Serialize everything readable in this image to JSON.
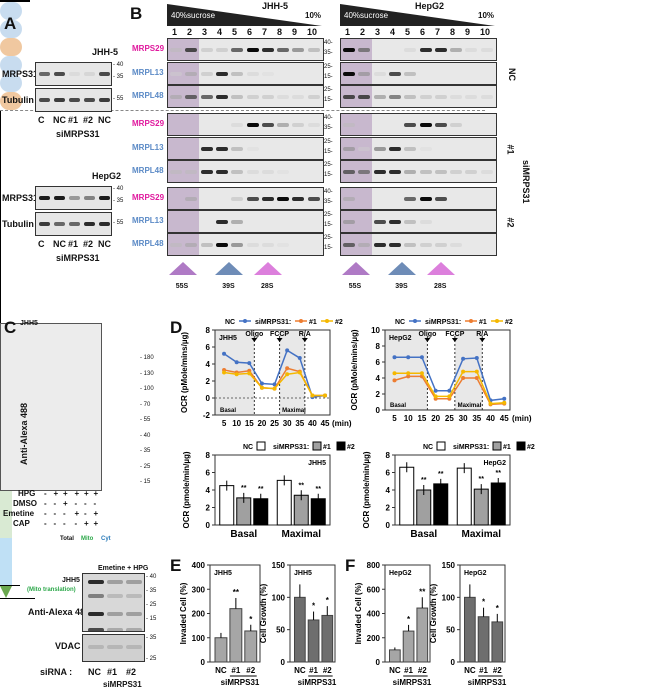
{
  "panels": {
    "a": "A",
    "b": "B",
    "c": "C",
    "d": "D",
    "e": "E",
    "f": "F"
  },
  "panel_a": {
    "blots": [
      {
        "cell": "JHH-5",
        "rows": [
          {
            "label": "MRPS31",
            "markers": [
              "40",
              "35"
            ],
            "bands": [
              0.7,
              0.8,
              0.1,
              0.15,
              0.8
            ]
          },
          {
            "label": "Tubulin",
            "markers": [
              "55"
            ],
            "bands": [
              0.8,
              0.85,
              0.8,
              0.8,
              0.85
            ]
          }
        ]
      },
      {
        "cell": "HepG2",
        "rows": [
          {
            "label": "MRPS31",
            "markers": [
              "40",
              "35"
            ],
            "bands": [
              0.95,
              0.95,
              0.5,
              0.6,
              0.95
            ]
          },
          {
            "label": "Tubulin",
            "markers": [
              "55"
            ],
            "bands": [
              0.85,
              0.7,
              0.7,
              0.9,
              0.9
            ]
          }
        ]
      }
    ],
    "lanes": [
      "C",
      "NC",
      "#1",
      "#2",
      "NC"
    ],
    "group": "siMRPS31"
  },
  "panel_b": {
    "gradient_start": "40%sucrose",
    "gradient_end": "10%",
    "cells": [
      "JHH-5",
      "HepG2"
    ],
    "lanes": [
      "1",
      "2",
      "3",
      "4",
      "5",
      "6",
      "7",
      "8",
      "9",
      "10"
    ],
    "row_labels": [
      {
        "name": "MRPS29",
        "color": "#e0199e"
      },
      {
        "name": "MRPL13",
        "color": "#5b8ac6"
      },
      {
        "name": "MRPL48",
        "color": "#5b8ac6"
      }
    ],
    "markers": [
      [
        "40",
        "35"
      ],
      [
        "25",
        "15"
      ],
      [
        "25",
        "15"
      ]
    ],
    "conditions": [
      "NC",
      "#1",
      "#2"
    ],
    "group": "siMRPS31",
    "subunits": [
      "55S",
      "39S",
      "28S"
    ],
    "bands": {
      "JHH-5": [
        [
          [
            0.2,
            0.8,
            0.2,
            0.2,
            0.7,
            1,
            0.9,
            0.7,
            0.5,
            0.3
          ],
          [
            0.1,
            0.3,
            0.2,
            0.9,
            0.3,
            0.1,
            0.05,
            0,
            0,
            0
          ],
          [
            0.3,
            0.7,
            0.7,
            0.9,
            0.3,
            0.2,
            0.2,
            0.1,
            0.1,
            0.2
          ]
        ],
        [
          [
            0,
            0,
            0,
            0,
            0.1,
            1,
            0.8,
            0.4,
            0.2,
            0.1
          ],
          [
            0,
            0,
            0.9,
            0.9,
            0.3,
            0.05,
            0,
            0,
            0,
            0
          ],
          [
            0.2,
            0.2,
            0.9,
            0.9,
            0.3,
            0.1,
            0.1,
            0.05,
            0,
            0
          ]
        ],
        [
          [
            0,
            0.3,
            0,
            0,
            0.2,
            0.8,
            0.9,
            1,
            0.9,
            0.8
          ],
          [
            0,
            0,
            0,
            0.9,
            0.4,
            0,
            0,
            0,
            0,
            0
          ],
          [
            0.2,
            0.3,
            0.3,
            1,
            0.5,
            0.1,
            0.1,
            0.05,
            0,
            0
          ]
        ]
      ],
      "HepG2": [
        [
          [
            1,
            0.6,
            0,
            0,
            0.1,
            0.9,
            0.9,
            0.4,
            0.1,
            0.1
          ],
          [
            1,
            0.4,
            0.1,
            0.8,
            0.3,
            0,
            0,
            0,
            0,
            0
          ],
          [
            0.8,
            0.8,
            0.4,
            0.6,
            0.3,
            0.2,
            0.2,
            0.1,
            0.1,
            0.1
          ]
        ],
        [
          [
            0.2,
            0,
            0,
            0,
            0.8,
            1,
            0.8,
            0.2,
            0,
            0
          ],
          [
            0.4,
            0.1,
            0.5,
            0.9,
            0.3,
            0.05,
            0,
            0,
            0,
            0
          ],
          [
            0.7,
            0.6,
            0.9,
            0.9,
            0.4,
            0.3,
            0.3,
            0.2,
            0.2,
            0.1
          ]
        ],
        [
          [
            0.3,
            0,
            0,
            0,
            0.7,
            1,
            0.8,
            0,
            0,
            0
          ],
          [
            0.4,
            0,
            0.8,
            0.9,
            0.3,
            0.1,
            0,
            0,
            0,
            0
          ],
          [
            0.7,
            0.3,
            0.9,
            0.9,
            0.3,
            0.2,
            0.2,
            0.1,
            0,
            0
          ]
        ]
      ]
    }
  },
  "panel_c": {
    "cell": "JHH5",
    "ylabel": "Anti-Alexa 488",
    "markers": [
      "180",
      "130",
      "100",
      "70",
      "55",
      "40",
      "35",
      "25",
      "15"
    ],
    "conditions": [
      {
        "name": "HPG",
        "values": [
          "-",
          "+",
          "+",
          "+",
          "+",
          "+"
        ]
      },
      {
        "name": "DMSO",
        "values": [
          "-",
          "-",
          "+",
          "-",
          "-",
          "-"
        ]
      },
      {
        "name": "Emetine",
        "values": [
          "-",
          "-",
          "-",
          "+",
          "-",
          "+"
        ]
      },
      {
        "name": "CAP",
        "values": [
          "-",
          "-",
          "-",
          "-",
          "+",
          "+"
        ]
      }
    ],
    "groups": {
      "total": "Total",
      "mito": "Mito",
      "cyt": "Cyt"
    },
    "lower": {
      "title": "Emetine + HPG",
      "cell": "JHH5",
      "subtitle": "(Mito translation)",
      "blot_label": "Anti-Alexa 488",
      "markers": [
        "40",
        "35",
        "25",
        "15"
      ],
      "vdac": "VDAC",
      "vdac_markers": [
        "35",
        "25"
      ],
      "sirna_label": "siRNA :",
      "lanes": [
        "NC",
        "#1",
        "#2"
      ],
      "group": "siMRPS31"
    }
  },
  "chart_data": [
    {
      "type": "line",
      "id": "d-jhh5",
      "title": "JHH5",
      "legend": {
        "nc": "NC",
        "group": "siMRPS31:",
        "s1": "#1",
        "s2": "#2"
      },
      "ylabel": "OCR (pMole/mins/µg)",
      "xlabel": "(min)",
      "ylim": [
        -2,
        8
      ],
      "yticks": [
        -2,
        0,
        2,
        4,
        6,
        8
      ],
      "x": [
        5,
        10,
        15,
        20,
        25,
        30,
        35,
        40,
        45
      ],
      "series": [
        {
          "name": "NC",
          "color": "#4472c4",
          "values": [
            5.2,
            4.2,
            4.1,
            1.7,
            1.6,
            5.6,
            4.7,
            0.1,
            0.3
          ]
        },
        {
          "name": "#1",
          "color": "#ed7d31",
          "values": [
            3.3,
            3.0,
            3.2,
            1.2,
            1.1,
            3.5,
            3.1,
            0.3,
            0.3
          ]
        },
        {
          "name": "#2",
          "color": "#f5b800",
          "values": [
            3.0,
            2.8,
            2.9,
            1.2,
            1.1,
            2.8,
            3.0,
            0.3,
            0.3
          ]
        }
      ],
      "injections": [
        {
          "label": "Oligo",
          "x": 17
        },
        {
          "label": "FCCP",
          "x": 27
        },
        {
          "label": "R/A",
          "x": 37
        }
      ],
      "regions": {
        "basal": "Basal",
        "maximal": "Maximal"
      }
    },
    {
      "type": "line",
      "id": "d-hepg2",
      "title": "HepG2",
      "legend": {
        "nc": "NC",
        "group": "siMRPS31:",
        "s1": "#1",
        "s2": "#2"
      },
      "ylabel": "OCR (pMole/mins/µg)",
      "xlabel": "(min)",
      "ylim": [
        0,
        10
      ],
      "yticks": [
        0,
        2,
        4,
        6,
        8,
        10
      ],
      "x": [
        5,
        10,
        15,
        20,
        25,
        30,
        35,
        40,
        45
      ],
      "series": [
        {
          "name": "NC",
          "color": "#4472c4",
          "values": [
            6.6,
            6.6,
            6.6,
            2.4,
            2.4,
            6.4,
            6.5,
            1.2,
            1.4
          ]
        },
        {
          "name": "#1",
          "color": "#ed7d31",
          "values": [
            3.7,
            4.2,
            4.2,
            1.4,
            1.4,
            4.0,
            4.0,
            0.7,
            0.8
          ]
        },
        {
          "name": "#2",
          "color": "#f5b800",
          "values": [
            4.6,
            4.6,
            4.6,
            1.7,
            1.7,
            4.8,
            4.8,
            0.8,
            0.9
          ]
        }
      ],
      "injections": [
        {
          "label": "Oligo",
          "x": 17
        },
        {
          "label": "FCCP",
          "x": 27
        },
        {
          "label": "R/A",
          "x": 37
        }
      ],
      "regions": {
        "basal": "Basal",
        "maximal": "Maximal"
      }
    },
    {
      "type": "bar",
      "id": "d-bar-jhh5",
      "title": "JHH5",
      "legend": {
        "nc": "NC",
        "group": "siMRPS31:",
        "s1": "#1",
        "s2": "#2"
      },
      "ylabel": "OCR (pmole/min/µg)",
      "ylim": [
        0,
        8
      ],
      "yticks": [
        0,
        2,
        4,
        6,
        8
      ],
      "categories": [
        "Basal",
        "Maximal"
      ],
      "series": [
        {
          "name": "NC",
          "color": "#ffffff",
          "values": [
            4.5,
            5.1
          ]
        },
        {
          "name": "#1",
          "color": "#a0a0a0",
          "values": [
            3.1,
            3.4
          ]
        },
        {
          "name": "#2",
          "color": "#000000",
          "values": [
            3.0,
            3.0
          ]
        }
      ],
      "annotations": [
        "",
        "**",
        "**"
      ]
    },
    {
      "type": "bar",
      "id": "d-bar-hepg2",
      "title": "HepG2",
      "legend": {
        "nc": "NC",
        "group": "siMRPS31:",
        "s1": "#1",
        "s2": "#2"
      },
      "ylabel": "OCR (pmole/min/µg)",
      "ylim": [
        0,
        8
      ],
      "yticks": [
        0,
        2,
        4,
        6,
        8
      ],
      "categories": [
        "Basal",
        "Maximal"
      ],
      "series": [
        {
          "name": "NC",
          "color": "#ffffff",
          "values": [
            6.6,
            6.5
          ]
        },
        {
          "name": "#1",
          "color": "#a0a0a0",
          "values": [
            4.0,
            4.1
          ]
        },
        {
          "name": "#2",
          "color": "#000000",
          "values": [
            4.7,
            4.8
          ]
        }
      ],
      "annotations": [
        "",
        "**",
        "**"
      ]
    },
    {
      "type": "bar",
      "id": "e-invaded",
      "title": "JHH5",
      "ylabel": "Invaded Cell (%)",
      "ylim": [
        0,
        400
      ],
      "yticks": [
        0,
        100,
        200,
        300,
        400
      ],
      "categories": [
        "NC",
        "#1",
        "#2"
      ],
      "values": [
        100,
        220,
        128
      ],
      "color": "#a6a6a6",
      "annotations": [
        "",
        "**",
        "*"
      ],
      "group": "siMRPS31"
    },
    {
      "type": "bar",
      "id": "e-growth",
      "title": "JHH5",
      "ylabel": "Cell Growth (%)",
      "ylim": [
        0,
        150
      ],
      "yticks": [
        0,
        50,
        100,
        150
      ],
      "categories": [
        "NC",
        "#1",
        "#2"
      ],
      "values": [
        100,
        65,
        72
      ],
      "color": "#6e6e6e",
      "annotations": [
        "",
        "*",
        "*"
      ],
      "group": "siMRPS31"
    },
    {
      "type": "bar",
      "id": "f-invaded",
      "title": "HepG2",
      "ylabel": "Invaded Cell (%)",
      "ylim": [
        0,
        800
      ],
      "yticks": [
        0,
        200,
        400,
        600,
        800
      ],
      "categories": [
        "NC",
        "#1",
        "#2"
      ],
      "values": [
        100,
        255,
        445
      ],
      "color": "#a6a6a6",
      "annotations": [
        "",
        "*",
        "**"
      ],
      "group": "siMRPS31"
    },
    {
      "type": "bar",
      "id": "f-growth",
      "title": "HepG2",
      "ylabel": "Cell Growth (%)",
      "ylim": [
        0,
        150
      ],
      "yticks": [
        0,
        50,
        100,
        150
      ],
      "categories": [
        "NC",
        "#1",
        "#2"
      ],
      "values": [
        100,
        70,
        62
      ],
      "color": "#6e6e6e",
      "annotations": [
        "",
        "*",
        "*"
      ],
      "group": "siMRPS31"
    }
  ]
}
